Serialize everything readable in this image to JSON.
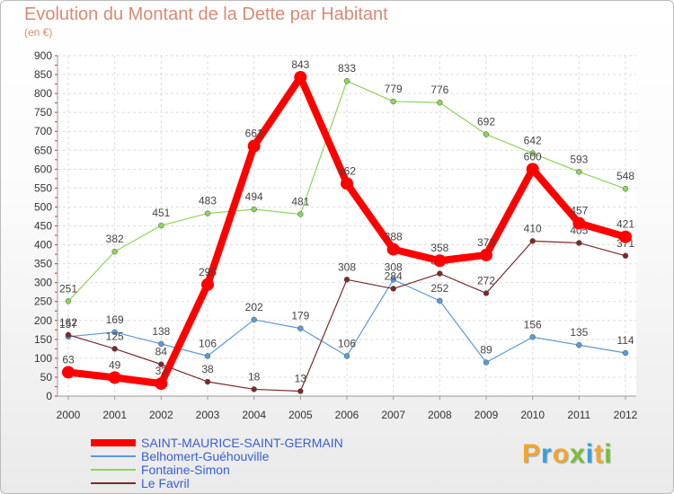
{
  "header": {
    "title": "Evolution du Montant de la Dette par Habitant",
    "subtitle": "(en €)"
  },
  "logo": {
    "text": "Proxiti",
    "letters": [
      "P",
      "r",
      "o",
      "x",
      "i",
      "t",
      "i"
    ]
  },
  "chart_data": {
    "type": "line",
    "title": "Evolution du Montant de la Dette par Habitant",
    "ylabel": "(en €)",
    "xlabel": "",
    "ylim": [
      0,
      900
    ],
    "ytick_step": 50,
    "grid": true,
    "legend_position": "bottom-left",
    "x": [
      "2000",
      "2001",
      "2002",
      "2003",
      "2004",
      "2005",
      "2006",
      "2007",
      "2008",
      "2009",
      "2010",
      "2011",
      "2012"
    ],
    "series": [
      {
        "name": "Belhomert-Guéhouville",
        "color": "#5b9bd5",
        "values": [
          157,
          169,
          138,
          106,
          202,
          179,
          106,
          308,
          252,
          89,
          156,
          135,
          114
        ],
        "labels": [
          "157",
          "169",
          "138",
          "106",
          "202",
          "179",
          "106",
          "308",
          "252",
          "89",
          "156",
          "135",
          "114"
        ]
      },
      {
        "name": "Fontaine-Simon",
        "color": "#8fd35a",
        "values": [
          251,
          382,
          451,
          483,
          494,
          481,
          833,
          779,
          776,
          692,
          642,
          593,
          548
        ],
        "labels": [
          "251",
          "382",
          "451",
          "483",
          "494",
          "481",
          "833",
          "779",
          "776",
          "692",
          "642",
          "593",
          "548"
        ]
      },
      {
        "name": "Le Favril",
        "color": "#7b2a2a",
        "values": [
          162,
          125,
          84,
          38,
          18,
          13,
          308,
          284,
          324,
          272,
          410,
          405,
          371
        ],
        "labels": [
          "162",
          "125",
          "84",
          "38",
          "18",
          "13",
          "308",
          "284",
          "324",
          "272",
          "410",
          "405",
          "371"
        ]
      },
      {
        "name": "SAINT-MAURICE-SAINT-GERMAIN",
        "color": "#ff0000",
        "values": [
          63,
          49,
          33,
          295,
          661,
          843,
          562,
          388,
          358,
          373,
          600,
          457,
          421
        ],
        "labels": [
          "63",
          "49",
          "33",
          "295",
          "661",
          "843",
          "562",
          "388",
          "358",
          "373",
          "600",
          "457",
          "421"
        ]
      }
    ],
    "legend": [
      {
        "name": "SAINT-MAURICE-SAINT-GERMAIN",
        "color": "#ff0000"
      },
      {
        "name": "Belhomert-Guéhouville",
        "color": "#5b9bd5"
      },
      {
        "name": "Fontaine-Simon",
        "color": "#8fd35a"
      },
      {
        "name": "Le Favril",
        "color": "#7b2a2a"
      }
    ]
  }
}
